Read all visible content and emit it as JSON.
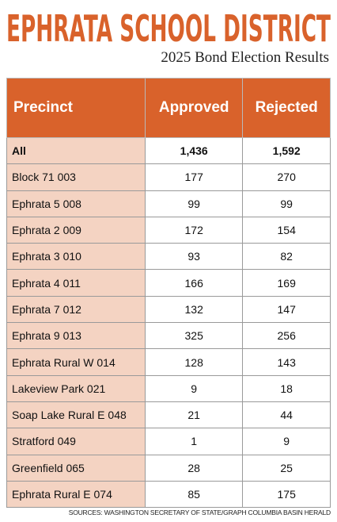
{
  "header": {
    "title": "EPHRATA SCHOOL DISTRICT",
    "subtitle": "2025 Bond Election Results"
  },
  "table": {
    "columns": [
      "Precinct",
      "Approved",
      "Rejected"
    ],
    "rows": [
      [
        "All",
        "1,436",
        "1,592"
      ],
      [
        "Block 71 003",
        "177",
        "270"
      ],
      [
        "Ephrata 5 008",
        "99",
        "99"
      ],
      [
        "Ephrata 2 009",
        "172",
        "154"
      ],
      [
        "Ephrata 3 010",
        "93",
        "82"
      ],
      [
        "Ephrata 4 011",
        "166",
        "169"
      ],
      [
        "Ephrata 7 012",
        "132",
        "147"
      ],
      [
        "Ephrata 9 013",
        "325",
        "256"
      ],
      [
        "Ephrata Rural W 014",
        "128",
        "143"
      ],
      [
        "Lakeview Park 021",
        "9",
        "18"
      ],
      [
        "Soap Lake Rural E 048",
        "21",
        "44"
      ],
      [
        "Stratford 049",
        "1",
        "9"
      ],
      [
        "Greenfield 065",
        "28",
        "25"
      ],
      [
        "Ephrata Rural E 074",
        "85",
        "175"
      ]
    ]
  },
  "source": "SOURCES: WASHINGTON SECRETARY OF STATE/GRAPH COLUMBIA BASIN HERALD"
}
